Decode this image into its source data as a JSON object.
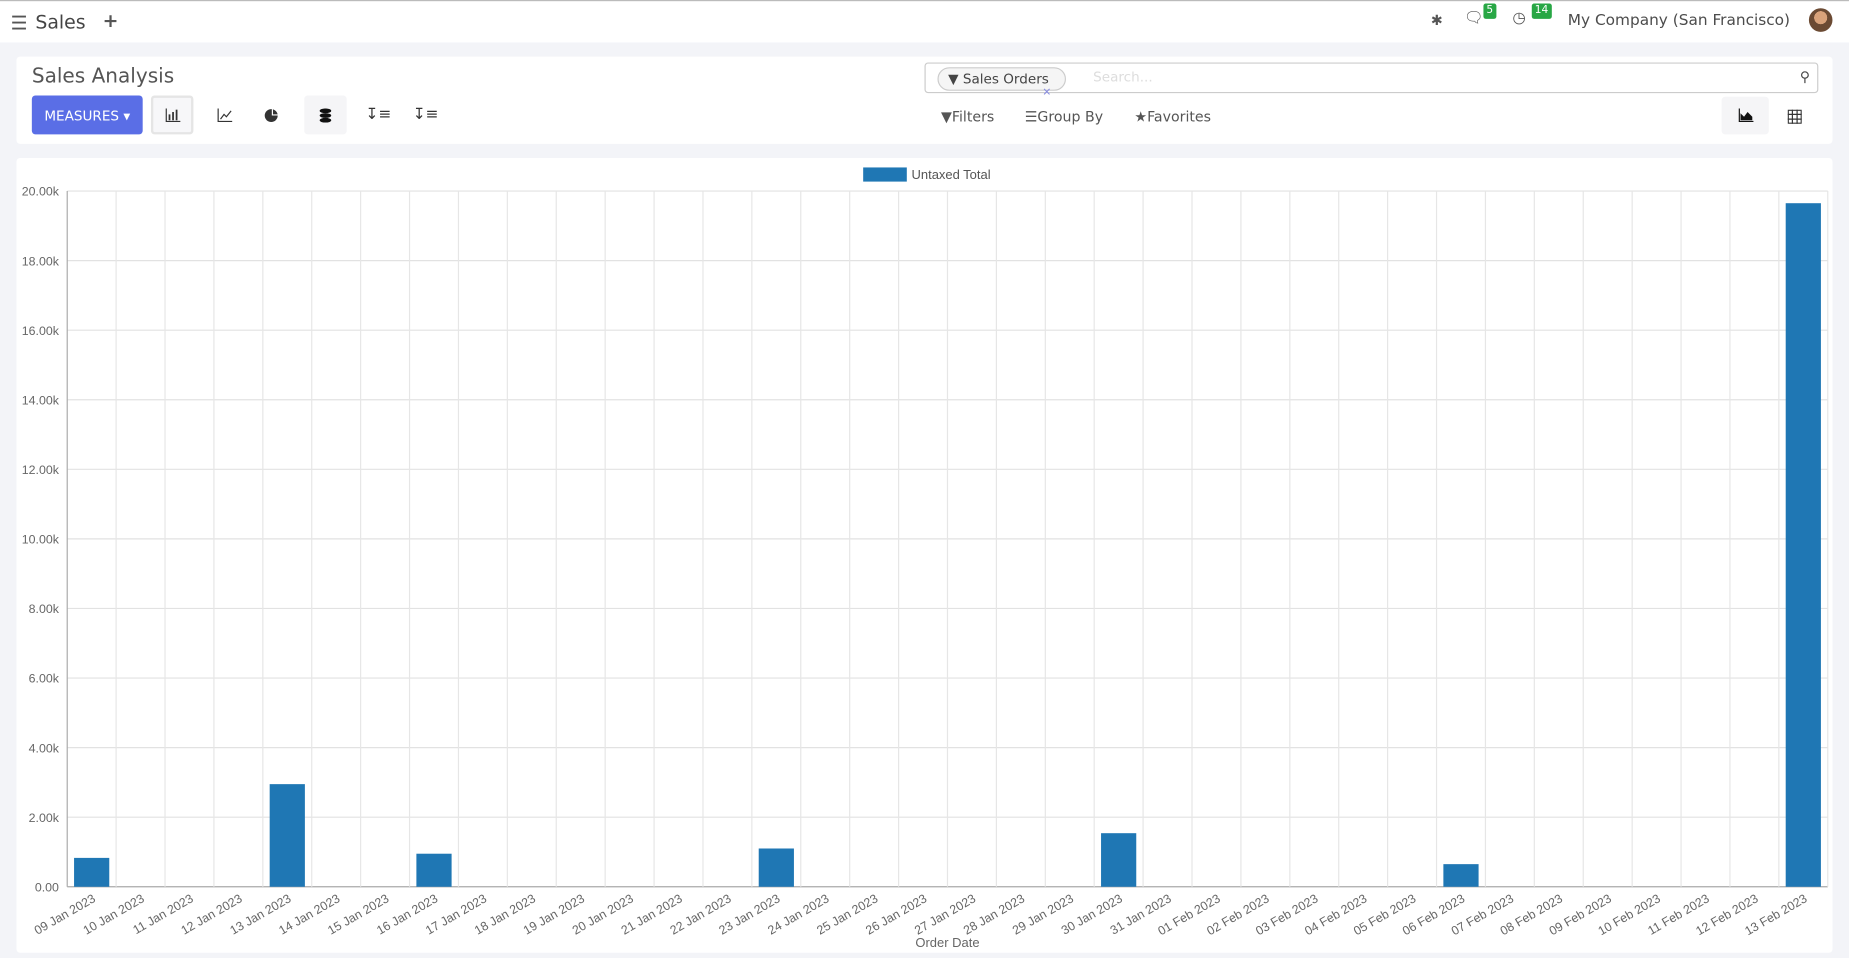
{
  "navbar": {
    "app_name": "Sales",
    "messages_count": "5",
    "activities_count": "14",
    "company": "My Company (San Francisco)"
  },
  "control_panel": {
    "title": "Sales Analysis",
    "measures_label": "MEASURES",
    "search": {
      "facet": "Sales Orders",
      "placeholder": "Search..."
    },
    "filters_label": "Filters",
    "group_by_label": "Group By",
    "favorites_label": "Favorites"
  },
  "colors": {
    "bar": "#1f77b4",
    "accent": "#5a6ee6",
    "badge": "#28a745"
  },
  "chart_data": {
    "type": "bar",
    "title": "",
    "legend": [
      "Untaxed Total"
    ],
    "legend_position": "top",
    "xlabel": "Order Date",
    "ylabel": "",
    "ylim": [
      0,
      20000
    ],
    "yticks": [
      "0.00",
      "2.00k",
      "4.00k",
      "6.00k",
      "8.00k",
      "10.00k",
      "12.00k",
      "14.00k",
      "16.00k",
      "18.00k",
      "20.00k"
    ],
    "grid": true,
    "categories": [
      "09 Jan 2023",
      "10 Jan 2023",
      "11 Jan 2023",
      "12 Jan 2023",
      "13 Jan 2023",
      "14 Jan 2023",
      "15 Jan 2023",
      "16 Jan 2023",
      "17 Jan 2023",
      "18 Jan 2023",
      "19 Jan 2023",
      "20 Jan 2023",
      "21 Jan 2023",
      "22 Jan 2023",
      "23 Jan 2023",
      "24 Jan 2023",
      "25 Jan 2023",
      "26 Jan 2023",
      "27 Jan 2023",
      "28 Jan 2023",
      "29 Jan 2023",
      "30 Jan 2023",
      "31 Jan 2023",
      "01 Feb 2023",
      "02 Feb 2023",
      "03 Feb 2023",
      "04 Feb 2023",
      "05 Feb 2023",
      "06 Feb 2023",
      "07 Feb 2023",
      "08 Feb 2023",
      "09 Feb 2023",
      "10 Feb 2023",
      "11 Feb 2023",
      "12 Feb 2023",
      "13 Feb 2023"
    ],
    "series": [
      {
        "name": "Untaxed Total",
        "values": [
          830,
          0,
          0,
          0,
          2950,
          0,
          0,
          950,
          0,
          0,
          0,
          0,
          0,
          0,
          1100,
          0,
          0,
          0,
          0,
          0,
          0,
          1540,
          0,
          0,
          0,
          0,
          0,
          0,
          650,
          0,
          0,
          0,
          0,
          0,
          0,
          19650
        ]
      }
    ]
  }
}
